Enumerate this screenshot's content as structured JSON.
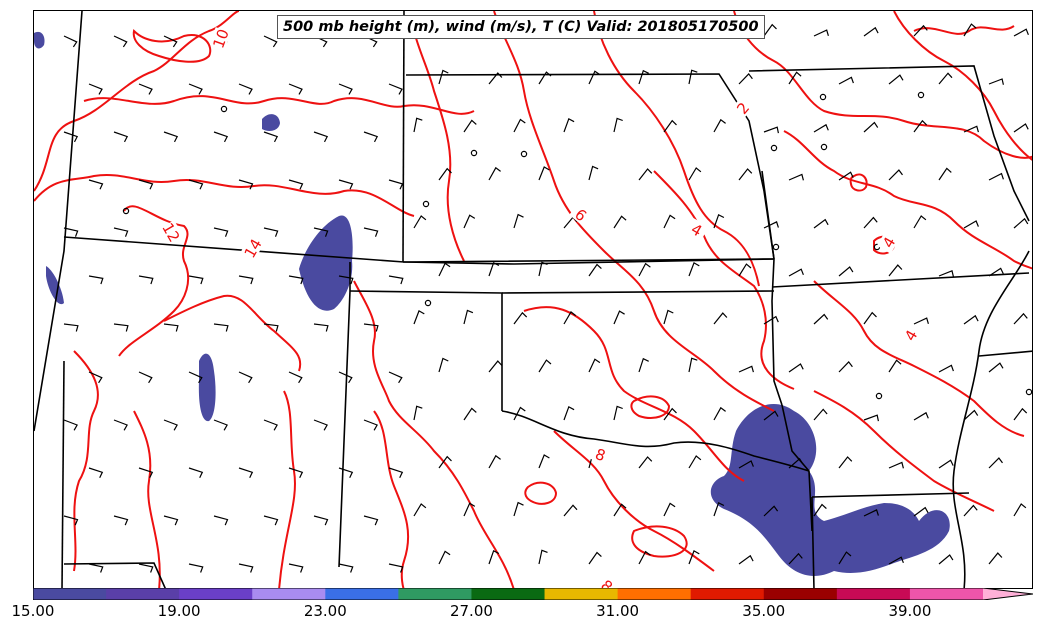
{
  "title": "500 mb height (m), wind (m/s), T (C) Valid: 201805170500",
  "contour_color": "#ee1111",
  "precip_color": "#4a4aa0",
  "contour_labels": [
    {
      "id": "contour-label-10-north",
      "text": "10"
    },
    {
      "id": "contour-label-12",
      "text": "12"
    },
    {
      "id": "contour-label-14",
      "text": "14"
    },
    {
      "id": "contour-label-6",
      "text": "6"
    },
    {
      "id": "contour-label-4-ks",
      "text": "4"
    },
    {
      "id": "contour-label-4-mo",
      "text": "4"
    },
    {
      "id": "contour-label-4-ar",
      "text": "4"
    },
    {
      "id": "contour-label-8-tx",
      "text": "8"
    },
    {
      "id": "contour-label-8-south",
      "text": "8"
    },
    {
      "id": "contour-label-2-ne",
      "text": "2"
    }
  ],
  "colorbar": {
    "colors": [
      "#4a4aa0",
      "#5a3fa8",
      "#6a3fc8",
      "#a98cf0",
      "#3a6fe6",
      "#2f9a62",
      "#0a6a12",
      "#e8b800",
      "#ff6f00",
      "#e01a00",
      "#9a0000",
      "#c80a55",
      "#ee55aa",
      "#ffb0d8"
    ],
    "tick_labels": [
      "15.00",
      "19.00",
      "23.00",
      "27.00",
      "31.00",
      "35.00",
      "39.00"
    ]
  }
}
